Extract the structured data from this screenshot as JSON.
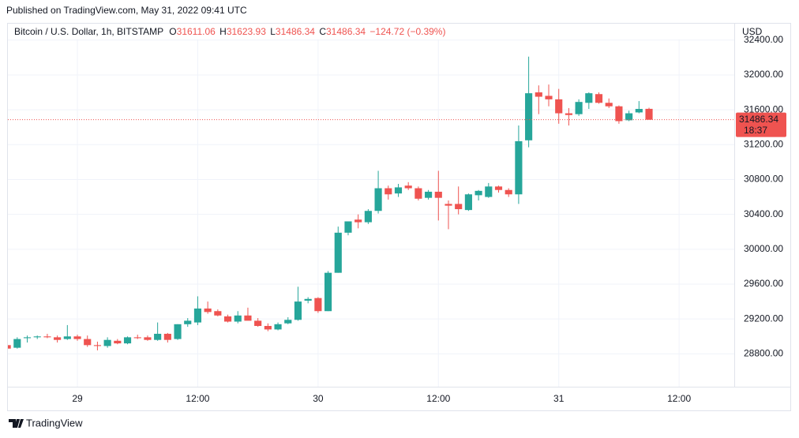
{
  "published": "Published on TradingView.com, May 31, 2022 09:41 UTC",
  "brand": "TradingView",
  "chart_data": {
    "type": "candlestick",
    "title": "Bitcoin / U.S. Dollar, 1h, BITSTAMP",
    "ohlc_labels": {
      "open_label": "O",
      "open": 31611.06,
      "high_label": "H",
      "high": 31623.93,
      "low_label": "L",
      "low": 31486.34,
      "close_label": "C",
      "close": 31486.34,
      "change": "−124.72 (−0.39%)"
    },
    "currency": "USD",
    "last_price": 31486.34,
    "countdown": "18:37",
    "up_color": "#26a69a",
    "down_color": "#ef5350",
    "grid": true,
    "x": [
      -7,
      -6,
      -5,
      -4,
      -3,
      -2,
      -1,
      0,
      1,
      2,
      3,
      4,
      5,
      6,
      7,
      8,
      9,
      10,
      11,
      12,
      13,
      14,
      15,
      16,
      17,
      18,
      19,
      20,
      21,
      22,
      23,
      24,
      25,
      26,
      27,
      28,
      29,
      30,
      31,
      32,
      33,
      34,
      35,
      36,
      37,
      38,
      39,
      40,
      41,
      42,
      43,
      44,
      45,
      46,
      47,
      48,
      49,
      50,
      51,
      52,
      53,
      54,
      55,
      56,
      57
    ],
    "open": [
      28900,
      28870,
      28980,
      28990,
      29000,
      28990,
      28970,
      29000,
      28970,
      28900,
      28890,
      28950,
      28920,
      28990,
      28990,
      28960,
      29030,
      28970,
      29140,
      29160,
      29320,
      29290,
      29230,
      29170,
      29240,
      29180,
      29120,
      29080,
      29150,
      29190,
      29410,
      29440,
      29290,
      29730,
      30190,
      30340,
      30310,
      30440,
      30700,
      30640,
      30730,
      30700,
      30590,
      30660,
      30520,
      30520,
      30450,
      30620,
      30600,
      30720,
      30680,
      30630,
      31250,
      31800,
      31760,
      31720,
      31560,
      31550,
      31680,
      31780,
      31680,
      31640,
      31480,
      31570,
      31611.06
    ],
    "high": [
      29000,
      28990,
      29010,
      29010,
      29030,
      29010,
      29130,
      29020,
      29010,
      28940,
      28990,
      28970,
      29000,
      29020,
      29010,
      29160,
      29040,
      29140,
      29210,
      29460,
      29400,
      29310,
      29250,
      29290,
      29330,
      29210,
      29150,
      29160,
      29220,
      29570,
      29450,
      29450,
      29750,
      30260,
      30320,
      30400,
      30460,
      30900,
      30730,
      30750,
      30770,
      30720,
      30680,
      30900,
      30560,
      30720,
      30640,
      30680,
      30760,
      30730,
      30700,
      31420,
      32210,
      31880,
      31890,
      31840,
      31620,
      31720,
      31800,
      31800,
      31730,
      31650,
      31590,
      31700,
      31623.93
    ],
    "low": [
      28760,
      28860,
      28930,
      28970,
      28980,
      28930,
      28960,
      28950,
      28880,
      28840,
      28870,
      28910,
      28910,
      28970,
      28950,
      28950,
      28930,
      28960,
      29110,
      29130,
      29260,
      29230,
      29160,
      29150,
      29190,
      29110,
      29060,
      29070,
      29140,
      29180,
      29380,
      29270,
      29290,
      29730,
      30160,
      30240,
      30290,
      30410,
      30570,
      30600,
      30680,
      30560,
      30570,
      30330,
      30230,
      30400,
      30440,
      30560,
      30590,
      30650,
      30600,
      30520,
      31170,
      31550,
      31640,
      31440,
      31420,
      31530,
      31610,
      31670,
      31620,
      31440,
      31470,
      31560,
      31486.34
    ],
    "close": [
      28860,
      28970,
      28990,
      29000,
      28990,
      28960,
      29000,
      28970,
      28900,
      28890,
      28960,
      28920,
      28990,
      28980,
      28960,
      29030,
      28960,
      29140,
      29180,
      29320,
      29280,
      29240,
      29170,
      29240,
      29180,
      29120,
      29080,
      29140,
      29190,
      29400,
      29430,
      29290,
      29730,
      30190,
      30320,
      30310,
      30440,
      30700,
      30630,
      30710,
      30700,
      30580,
      30660,
      30590,
      30500,
      30460,
      30630,
      30670,
      30720,
      30680,
      30630,
      31240,
      31790,
      31750,
      31720,
      31560,
      31540,
      31690,
      31790,
      31680,
      31640,
      31470,
      31560,
      31610,
      31486.34
    ],
    "xlim": [
      -6.93,
      65.5
    ],
    "xticks": [
      {
        "value": 0,
        "label": "29"
      },
      {
        "value": 12,
        "label": "12:00"
      },
      {
        "value": 24,
        "label": "30"
      },
      {
        "value": 36,
        "label": "12:00"
      },
      {
        "value": 48,
        "label": "31"
      },
      {
        "value": 60,
        "label": "12:00"
      }
    ],
    "ylim": [
      28423,
      32407
    ],
    "yticks": [
      {
        "value": 28800,
        "label": "28800.00"
      },
      {
        "value": 29200,
        "label": "29200.00"
      },
      {
        "value": 29600,
        "label": "29600.00"
      },
      {
        "value": 30000,
        "label": "30000.00"
      },
      {
        "value": 30400,
        "label": "30400.00"
      },
      {
        "value": 30800,
        "label": "30800.00"
      },
      {
        "value": 31200,
        "label": "31200.00"
      },
      {
        "value": 31600,
        "label": "31600.00"
      },
      {
        "value": 32000,
        "label": "32000.00"
      },
      {
        "value": 32400,
        "label": "32400.00"
      }
    ]
  }
}
